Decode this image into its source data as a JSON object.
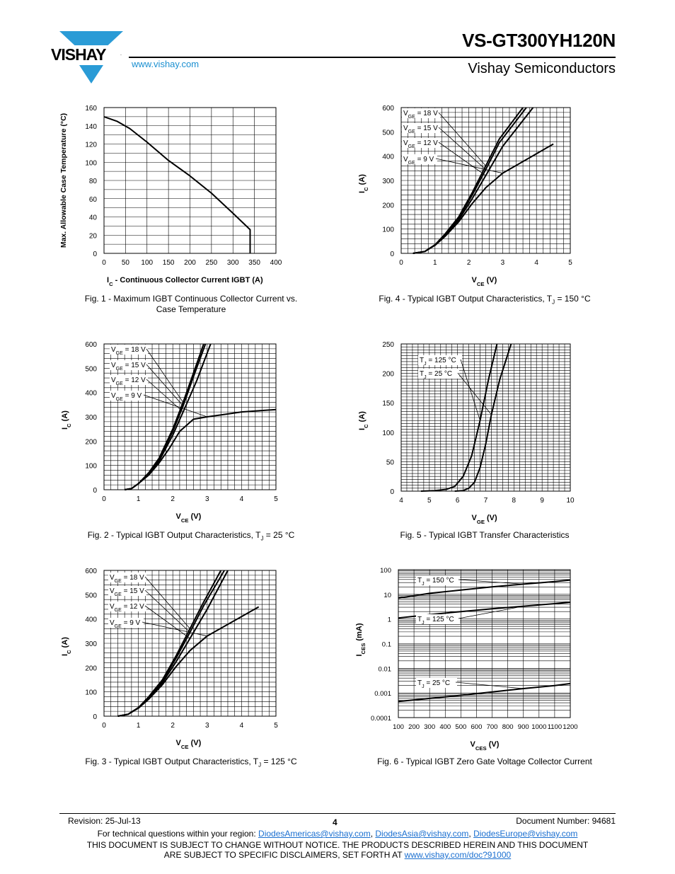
{
  "header": {
    "logo_text": "VISHAY",
    "part_number": "VS-GT300YH120N",
    "company": "Vishay Semiconductors",
    "url": "www.vishay.com"
  },
  "captions": {
    "fig1_line1": "Fig. 1 - Maximum IGBT Continuous Collector Current vs.",
    "fig1_line2": "Case Temperature",
    "fig2": "Fig. 2 - Typical IGBT Output Characteristics, T",
    "fig2_sub": "J",
    "fig2_tail": " = 25 °C",
    "fig3": "Fig. 3 -  Typical IGBT Output Characteristics, T",
    "fig3_sub": "J",
    "fig3_tail": " = 125 °C",
    "fig4": "Fig. 4 - Typical IGBT Output Characteristics, T",
    "fig4_sub": "J",
    "fig4_tail": " = 150 °C",
    "fig5": "Fig. 5 - Typical IGBT Transfer Characteristics",
    "fig6": "Fig. 6 - Typical IGBT Zero Gate Voltage Collector Current"
  },
  "footer": {
    "revision": "Revision: 25-Jul-13",
    "page": "4",
    "doc_number": "Document Number: 94681",
    "contact_prefix": "For technical questions within your region: ",
    "email1": "DiodesAmericas@vishay.com",
    "email2": "DiodesAsia@vishay.com",
    "email3": "DiodesEurope@vishay.com",
    "sep": ", ",
    "disclaimer1": "THIS DOCUMENT IS SUBJECT TO CHANGE WITHOUT NOTICE. THE PRODUCTS DESCRIBED HEREIN AND THIS DOCUMENT",
    "disclaimer2": "ARE SUBJECT TO SPECIFIC DISCLAIMERS, SET FORTH AT ",
    "disclaimer_link": "www.vishay.com/doc?91000"
  },
  "chart_data": [
    {
      "id": "fig1",
      "type": "line",
      "ylabel": "Max. Allowable Case Temperature (°C)",
      "xlabel_main": "I",
      "xlabel_sub": "C",
      "xlabel_tail": " - Continuous Collector Current IGBT (A)",
      "xlim": [
        0,
        400
      ],
      "ylim": [
        0,
        160
      ],
      "xticks": [
        0,
        50,
        100,
        150,
        200,
        250,
        300,
        350,
        400
      ],
      "yticks": [
        0,
        20,
        40,
        60,
        80,
        100,
        120,
        140,
        160
      ],
      "series": [
        {
          "x": [
            0,
            30,
            60,
            100,
            150,
            200,
            250,
            300,
            340,
            340
          ],
          "y": [
            150,
            145,
            137,
            122,
            102,
            85,
            66,
            44,
            26,
            0
          ]
        }
      ]
    },
    {
      "id": "fig2",
      "type": "line",
      "ylabel_main": "I",
      "ylabel_sub": "C",
      "ylabel_tail": " (A)",
      "xlabel_main": "V",
      "xlabel_sub": "CE",
      "xlabel_tail": " (V)",
      "xlim": [
        0,
        5
      ],
      "ylim": [
        0,
        600
      ],
      "xticks": [
        0,
        1,
        2,
        3,
        4,
        5
      ],
      "yticks": [
        0,
        100,
        200,
        300,
        400,
        500,
        600
      ],
      "series": [
        {
          "name": "VGE = 18 V",
          "x": [
            0.6,
            0.8,
            1.0,
            1.3,
            1.6,
            2.0,
            2.3,
            2.6,
            2.9
          ],
          "y": [
            0,
            5,
            25,
            70,
            130,
            250,
            360,
            480,
            600
          ]
        },
        {
          "name": "VGE = 15 V",
          "x": [
            0.6,
            0.8,
            1.0,
            1.3,
            1.6,
            2.0,
            2.3,
            2.6,
            2.95
          ],
          "y": [
            0,
            5,
            25,
            68,
            125,
            240,
            345,
            465,
            600
          ]
        },
        {
          "name": "VGE = 12 V",
          "x": [
            0.6,
            0.8,
            1.0,
            1.3,
            1.6,
            2.0,
            2.3,
            2.7,
            3.1
          ],
          "y": [
            0,
            5,
            25,
            65,
            118,
            225,
            320,
            450,
            600
          ]
        },
        {
          "name": "VGE = 9 V",
          "x": [
            0.6,
            0.8,
            1.0,
            1.3,
            1.6,
            1.9,
            2.2,
            2.6,
            3.0,
            3.5,
            4.0,
            5.0
          ],
          "y": [
            0,
            5,
            25,
            60,
            110,
            170,
            240,
            290,
            300,
            310,
            320,
            330
          ]
        }
      ],
      "labels": [
        {
          "main": "V",
          "sub": "GE",
          "tail": " = 18 V"
        },
        {
          "main": "V",
          "sub": "GE",
          "tail": " = 15 V"
        },
        {
          "main": "V",
          "sub": "GE",
          "tail": " = 12 V"
        },
        {
          "main": "V",
          "sub": "GE",
          "tail": " = 9 V"
        }
      ]
    },
    {
      "id": "fig3",
      "type": "line",
      "ylabel_main": "I",
      "ylabel_sub": "C",
      "ylabel_tail": " (A)",
      "xlabel_main": "V",
      "xlabel_sub": "CE",
      "xlabel_tail": " (V)",
      "xlim": [
        0,
        5
      ],
      "ylim": [
        0,
        600
      ],
      "xticks": [
        0,
        1,
        2,
        3,
        4,
        5
      ],
      "yticks": [
        0,
        100,
        200,
        300,
        400,
        500,
        600
      ],
      "series": [
        {
          "name": "VGE = 18 V",
          "x": [
            0.4,
            0.7,
            1.0,
            1.3,
            1.7,
            2.1,
            2.5,
            2.9,
            3.4
          ],
          "y": [
            0,
            8,
            35,
            80,
            150,
            250,
            360,
            470,
            600
          ]
        },
        {
          "name": "VGE = 15 V",
          "x": [
            0.4,
            0.7,
            1.0,
            1.3,
            1.7,
            2.1,
            2.5,
            2.9,
            3.5
          ],
          "y": [
            0,
            8,
            35,
            78,
            145,
            240,
            345,
            455,
            600
          ]
        },
        {
          "name": "VGE = 12 V",
          "x": [
            0.4,
            0.7,
            1.0,
            1.3,
            1.7,
            2.1,
            2.5,
            3.0,
            3.6
          ],
          "y": [
            0,
            8,
            35,
            75,
            138,
            225,
            320,
            440,
            600
          ]
        },
        {
          "name": "VGE = 9 V",
          "x": [
            0.4,
            0.7,
            1.0,
            1.3,
            1.7,
            2.1,
            2.5,
            3.0,
            3.5,
            4.0,
            4.5
          ],
          "y": [
            0,
            8,
            33,
            70,
            130,
            205,
            270,
            330,
            370,
            410,
            450
          ]
        }
      ],
      "labels": [
        {
          "main": "V",
          "sub": "GE",
          "tail": " = 18 V"
        },
        {
          "main": "V",
          "sub": "GE",
          "tail": " = 15 V"
        },
        {
          "main": "V",
          "sub": "GE",
          "tail": " = 12 V"
        },
        {
          "main": "V",
          "sub": "GE",
          "tail": " = 9 V"
        }
      ]
    },
    {
      "id": "fig4",
      "type": "line",
      "ylabel_main": "I",
      "ylabel_sub": "C",
      "ylabel_tail": " (A)",
      "xlabel_main": "V",
      "xlabel_sub": "CE",
      "xlabel_tail": " (V)",
      "xlim": [
        0,
        5
      ],
      "ylim": [
        0,
        600
      ],
      "xticks": [
        0,
        1,
        2,
        3,
        4,
        5
      ],
      "yticks": [
        0,
        100,
        200,
        300,
        400,
        500,
        600
      ],
      "series": [
        {
          "name": "VGE = 18 V",
          "x": [
            0.35,
            0.7,
            1.0,
            1.3,
            1.7,
            2.1,
            2.5,
            2.9,
            3.6
          ],
          "y": [
            0,
            8,
            35,
            80,
            150,
            250,
            360,
            470,
            600
          ]
        },
        {
          "name": "VGE = 15 V",
          "x": [
            0.35,
            0.7,
            1.0,
            1.3,
            1.7,
            2.1,
            2.5,
            2.9,
            3.7
          ],
          "y": [
            0,
            8,
            35,
            78,
            145,
            240,
            345,
            455,
            600
          ]
        },
        {
          "name": "VGE = 12 V",
          "x": [
            0.35,
            0.7,
            1.0,
            1.3,
            1.7,
            2.1,
            2.5,
            3.0,
            3.9
          ],
          "y": [
            0,
            8,
            35,
            75,
            138,
            225,
            320,
            440,
            600
          ]
        },
        {
          "name": "VGE = 9 V",
          "x": [
            0.35,
            0.7,
            1.0,
            1.3,
            1.7,
            2.1,
            2.5,
            3.0,
            3.5,
            4.0,
            4.5
          ],
          "y": [
            0,
            8,
            33,
            70,
            130,
            205,
            270,
            330,
            370,
            410,
            450
          ]
        }
      ],
      "labels": [
        {
          "main": "V",
          "sub": "GE",
          "tail": " = 18 V"
        },
        {
          "main": "V",
          "sub": "GE",
          "tail": " = 15 V"
        },
        {
          "main": "V",
          "sub": "GE",
          "tail": " = 12 V"
        },
        {
          "main": "V",
          "sub": "GE",
          "tail": " = 9 V"
        }
      ]
    },
    {
      "id": "fig5",
      "type": "line",
      "ylabel_main": "I",
      "ylabel_sub": "C",
      "ylabel_tail": " (A)",
      "xlabel_main": "V",
      "xlabel_sub": "GE",
      "xlabel_tail": " (V)",
      "xlim": [
        4,
        10
      ],
      "ylim": [
        0,
        250
      ],
      "xticks": [
        4,
        5,
        6,
        7,
        8,
        9,
        10
      ],
      "yticks": [
        0,
        50,
        100,
        150,
        200,
        250
      ],
      "series": [
        {
          "name": "TJ = 125 °C",
          "x": [
            4.7,
            5.2,
            5.6,
            5.9,
            6.2,
            6.5,
            6.8,
            7.1,
            7.4
          ],
          "y": [
            0,
            1,
            3,
            8,
            25,
            60,
            120,
            190,
            250
          ]
        },
        {
          "name": "TJ = 25 °C",
          "x": [
            5.9,
            6.2,
            6.4,
            6.6,
            6.8,
            7.0,
            7.2,
            7.5,
            7.9
          ],
          "y": [
            0,
            1,
            5,
            15,
            40,
            80,
            130,
            190,
            250
          ]
        }
      ],
      "labels": [
        {
          "main": "T",
          "sub": "J",
          "tail": " = 125 °C"
        },
        {
          "main": "T",
          "sub": "J",
          "tail": " = 25 °C"
        }
      ]
    },
    {
      "id": "fig6",
      "type": "line",
      "yscale": "log",
      "ylabel_main": "I",
      "ylabel_sub": "CES",
      "ylabel_tail": " (mA)",
      "xlabel_main": "V",
      "xlabel_sub": "CES",
      "xlabel_tail": " (V)",
      "xlim": [
        100,
        1200
      ],
      "ylim": [
        0.0001,
        100
      ],
      "xticks": [
        100,
        200,
        300,
        400,
        500,
        600,
        700,
        800,
        900,
        1000,
        1100,
        1200
      ],
      "yticks": [
        0.0001,
        0.001,
        0.01,
        0.1,
        1,
        10,
        100
      ],
      "ytick_labels": [
        "0.0001",
        "0.001",
        "0.01",
        "0.1",
        "1",
        "10",
        "100"
      ],
      "series": [
        {
          "name": "TJ = 150 °C",
          "x": [
            100,
            300,
            500,
            700,
            900,
            1100,
            1200
          ],
          "y": [
            7,
            11,
            15,
            20,
            26,
            33,
            38
          ]
        },
        {
          "name": "TJ = 125 °C",
          "x": [
            100,
            300,
            500,
            700,
            900,
            1100,
            1200
          ],
          "y": [
            1.1,
            1.5,
            2.0,
            2.6,
            3.3,
            4.2,
            4.8
          ]
        },
        {
          "name": "TJ = 25 °C",
          "x": [
            100,
            300,
            500,
            700,
            900,
            1100,
            1200
          ],
          "y": [
            0.00045,
            0.0006,
            0.0008,
            0.0011,
            0.0015,
            0.002,
            0.0024
          ]
        }
      ],
      "labels": [
        {
          "main": "T",
          "sub": "J",
          "tail": " = 150 °C"
        },
        {
          "main": "T",
          "sub": "J",
          "tail": " = 125 °C"
        },
        {
          "main": "T",
          "sub": "J",
          "tail": " = 25 °C"
        }
      ]
    }
  ],
  "colors": {
    "link": "#1a6fd0",
    "logo_blue": "#2a9bd6",
    "ink": "#000000"
  }
}
